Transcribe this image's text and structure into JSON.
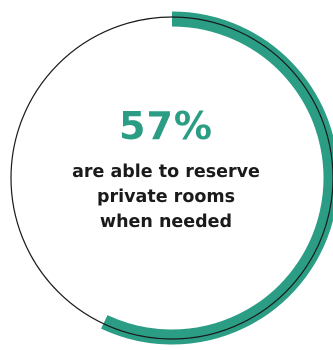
{
  "chart_data": {
    "type": "pie",
    "variant": "donut",
    "values": [
      57,
      43
    ],
    "percent_label": "57%",
    "caption_lines": [
      "are able to reserve",
      "private rooms",
      "when needed"
    ],
    "accent_color": "#2a9d84",
    "track_color": "#1a1a1a",
    "start": "top",
    "direction": "clockwise"
  }
}
